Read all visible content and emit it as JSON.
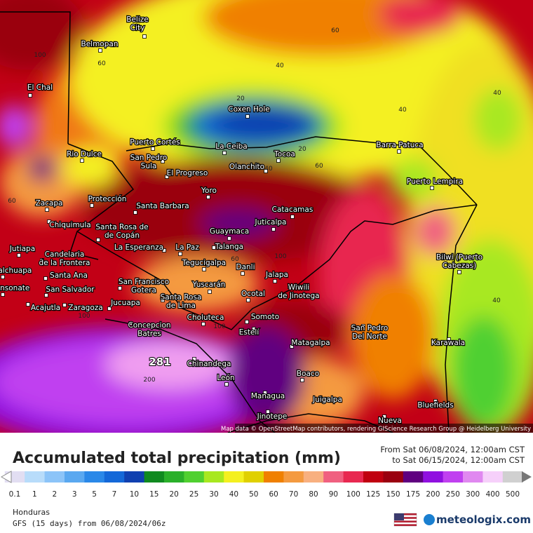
{
  "map": {
    "attribution": "Map data © OpenStreetMap contributors, rendering GIScience Research Group @ Heidelberg University",
    "max_value": 281,
    "contour_labels": [
      100,
      60,
      40,
      60,
      40,
      20,
      40,
      20,
      40,
      60,
      40,
      60,
      100,
      100,
      60,
      200,
      100
    ],
    "cities": [
      {
        "lines": [
          "Belize",
          "City"
        ]
      },
      {
        "lines": [
          "Belmopan"
        ]
      },
      {
        "lines": [
          "El Chal"
        ]
      },
      {
        "lines": [
          "Coxen Hole"
        ]
      },
      {
        "lines": [
          "Puerto Cortés"
        ]
      },
      {
        "lines": [
          "La Ceiba"
        ]
      },
      {
        "lines": [
          "Tocoa"
        ]
      },
      {
        "lines": [
          "Barra Patuca"
        ]
      },
      {
        "lines": [
          "Rio Dulce"
        ]
      },
      {
        "lines": [
          "San Pedro",
          "Sula"
        ]
      },
      {
        "lines": [
          "El Progreso"
        ]
      },
      {
        "lines": [
          "Olanchito"
        ]
      },
      {
        "lines": [
          "Puerto Lempira"
        ]
      },
      {
        "lines": [
          "Yoro"
        ]
      },
      {
        "lines": [
          "Zacapa"
        ]
      },
      {
        "lines": [
          "Protección"
        ]
      },
      {
        "lines": [
          "Santa Barbara"
        ]
      },
      {
        "lines": [
          "Catacamas"
        ]
      },
      {
        "lines": [
          "Chiquimula"
        ]
      },
      {
        "lines": [
          "Santa Rosa de",
          "de Copán"
        ]
      },
      {
        "lines": [
          "Guaymaca"
        ]
      },
      {
        "lines": [
          "Juticalpa"
        ]
      },
      {
        "lines": [
          "Jutiapa"
        ]
      },
      {
        "lines": [
          "Candelaria",
          "de la Frontera"
        ]
      },
      {
        "lines": [
          "La Esperanza"
        ]
      },
      {
        "lines": [
          "La Paz"
        ]
      },
      {
        "lines": [
          "Talanga"
        ]
      },
      {
        "lines": [
          "Tegucigalpa"
        ]
      },
      {
        "lines": [
          "halchuapa"
        ]
      },
      {
        "lines": [
          "Santa Ana"
        ]
      },
      {
        "lines": [
          "Danli"
        ]
      },
      {
        "lines": [
          "Jalapa"
        ]
      },
      {
        "lines": [
          "onsonate"
        ]
      },
      {
        "lines": [
          "San Salvador"
        ]
      },
      {
        "lines": [
          "San Francisco",
          "Gotera"
        ]
      },
      {
        "lines": [
          "Yuscarán"
        ]
      },
      {
        "lines": [
          "Wiwili",
          "de Jinotega"
        ]
      },
      {
        "lines": [
          "Ocotal"
        ]
      },
      {
        "lines": [
          "Acajutla"
        ]
      },
      {
        "lines": [
          "Zaragoza"
        ]
      },
      {
        "lines": [
          "Jucuapa"
        ]
      },
      {
        "lines": [
          "Santa Rosa",
          "de Lima"
        ]
      },
      {
        "lines": [
          "Somoto"
        ]
      },
      {
        "lines": [
          "Choluteca"
        ]
      },
      {
        "lines": [
          "Concepcion",
          "Batres"
        ]
      },
      {
        "lines": [
          "Estelí"
        ]
      },
      {
        "lines": [
          "San Pedro",
          "Del Norte"
        ]
      },
      {
        "lines": [
          "Karawala"
        ]
      },
      {
        "lines": [
          "Matagalpa"
        ]
      },
      {
        "lines": [
          "Chinandega"
        ]
      },
      {
        "lines": [
          "León"
        ]
      },
      {
        "lines": [
          "Boaco"
        ]
      },
      {
        "lines": [
          "Managua"
        ]
      },
      {
        "lines": [
          "Juigalpa"
        ]
      },
      {
        "lines": [
          "Bluefields"
        ]
      },
      {
        "lines": [
          "Jinotepe"
        ]
      },
      {
        "lines": [
          "Nueva"
        ]
      },
      {
        "lines": [
          "Bilwi (Puerto",
          "Cabezas)"
        ]
      }
    ]
  },
  "legend": {
    "title": "Accumulated total precipitation (mm)",
    "period_from": "From Sat 06/08/2024, 12:00am CST",
    "period_to": "to Sat 06/15/2024, 12:00am CST",
    "scale": [
      {
        "value": 0.1,
        "color": "#e2def2"
      },
      {
        "value": 1,
        "color": "#b8dcfa"
      },
      {
        "value": 2,
        "color": "#8cc4f8"
      },
      {
        "value": 3,
        "color": "#5aa8f0"
      },
      {
        "value": 5,
        "color": "#2a88e8"
      },
      {
        "value": 7,
        "color": "#1468d8"
      },
      {
        "value": 10,
        "color": "#1040b0"
      },
      {
        "value": 15,
        "color": "#108a20"
      },
      {
        "value": 20,
        "color": "#2ab02a"
      },
      {
        "value": 25,
        "color": "#50d030"
      },
      {
        "value": 30,
        "color": "#a8e820"
      },
      {
        "value": 40,
        "color": "#f4f020"
      },
      {
        "value": 50,
        "color": "#e0d000"
      },
      {
        "value": 60,
        "color": "#f08000"
      },
      {
        "value": 70,
        "color": "#f49a40"
      },
      {
        "value": 80,
        "color": "#f8b080"
      },
      {
        "value": 90,
        "color": "#f06080"
      },
      {
        "value": 100,
        "color": "#e82850"
      },
      {
        "value": 125,
        "color": "#c00010"
      },
      {
        "value": 150,
        "color": "#9a0010"
      },
      {
        "value": 175,
        "color": "#600080"
      },
      {
        "value": 200,
        "color": "#9010e0"
      },
      {
        "value": 250,
        "color": "#c040f0"
      },
      {
        "value": 300,
        "color": "#e088f0"
      },
      {
        "value": 400,
        "color": "#f6d0fa"
      },
      {
        "value": 500,
        "color": "#d0d0d0"
      }
    ]
  },
  "footer": {
    "region": "Honduras",
    "model": "GFS (15 days) from 06/08/2024/06z",
    "brand": "meteologix.com"
  }
}
